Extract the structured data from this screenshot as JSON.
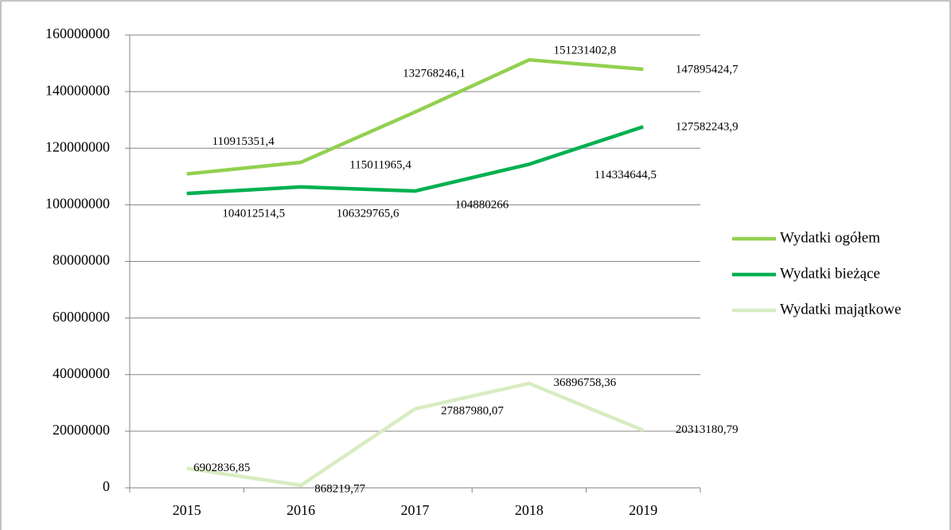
{
  "chart_data": {
    "type": "line",
    "categories": [
      "2015",
      "2016",
      "2017",
      "2018",
      "2019"
    ],
    "series": [
      {
        "name": "Wydatki ogółem",
        "color": "#92d050",
        "values": [
          110915351.4,
          115011965.4,
          132768246.1,
          151231402.8,
          147895424.7
        ],
        "value_labels": [
          "110915351,4",
          "115011965,4",
          "132768246,1",
          "151231402,8",
          "147895424,7"
        ]
      },
      {
        "name": "Wydatki bieżące",
        "color": "#00b050",
        "values": [
          104012514.5,
          106329765.6,
          104880266,
          114334644.5,
          127582243.9
        ],
        "value_labels": [
          "104012514,5",
          "106329765,6",
          "104880266",
          "114334644,5",
          "127582243,9"
        ]
      },
      {
        "name": "Wydatki majątkowe",
        "color": "#d8ecc2",
        "values": [
          6902836.85,
          868219.77,
          27887980.07,
          36896758.36,
          20313180.79
        ],
        "value_labels": [
          "6902836,85",
          "868219,77",
          "27887980,07",
          "36896758,36",
          "20313180,79"
        ]
      }
    ],
    "ylim": [
      0,
      160000000
    ],
    "yticks": [
      0,
      20000000,
      40000000,
      60000000,
      80000000,
      100000000,
      120000000,
      140000000,
      160000000
    ],
    "grid": true,
    "legend": "right"
  }
}
